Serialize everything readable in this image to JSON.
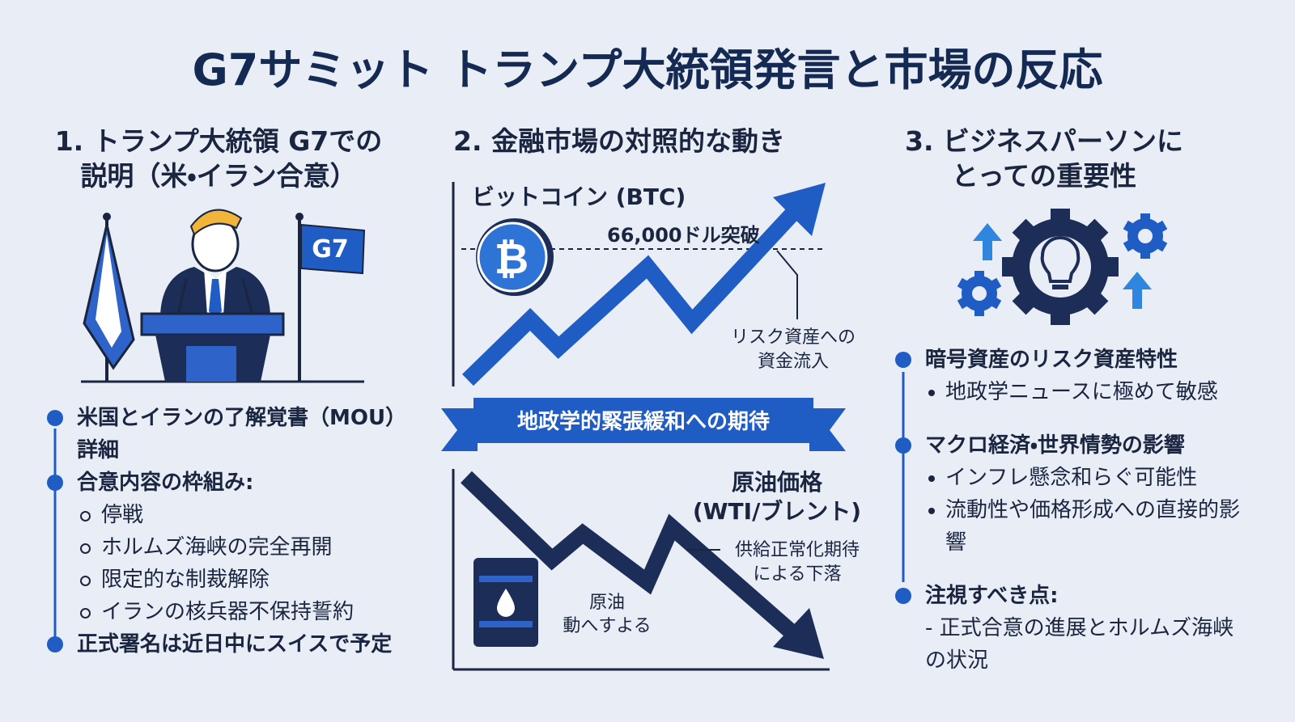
{
  "title": "G7サミット トランプ大統領発言と市場の反応",
  "section1": {
    "heading": [
      "1. トランプ大統領 G7での",
      "説明（米・イラン合意）"
    ],
    "flag_label": "G7",
    "bullets": [
      {
        "text": "米国とイランの了解覚書（MOU）詳細",
        "sub": []
      },
      {
        "text": "合意内容の枠組み:",
        "sub": [
          "停戦",
          "ホルムズ海峡の完全再開",
          "限定的な制裁解除",
          "イランの核兵器不保持誓約"
        ]
      },
      {
        "text": "正式署名は近日中にスイスで予定",
        "sub": []
      }
    ]
  },
  "section2": {
    "heading": "2. 金融市場の対照的な動き",
    "btc": {
      "label": "ビットコイン (BTC)",
      "symbol": "₿",
      "threshold": "66,000ドル突破",
      "annotation": [
        "リスク資産への",
        "資金流入"
      ]
    },
    "banner": "地政学的緊張緩和への期待",
    "oil": {
      "label": [
        "原油価格",
        "(WTI/ブレント)"
      ],
      "annotation": [
        "供給正常化期待",
        "による下落"
      ],
      "barrel_label": [
        "原油",
        "動へすよる"
      ]
    }
  },
  "section3": {
    "heading": [
      "3. ビジネスパーソンに",
      "とっての重要性"
    ],
    "points": [
      {
        "title": "暗号資産のリスク資産特性",
        "items": [
          "地政学ニュースに極めて敏感"
        ]
      },
      {
        "title": "マクロ経済・世界情勢の影響",
        "items": [
          "インフレ懸念和らぐ可能性",
          "流動性や価格形成への直接的影響"
        ]
      },
      {
        "title": "注視すべき点:",
        "items": [
          "- 正式合意の進展とホルムズ海峡の状況"
        ]
      }
    ]
  }
}
